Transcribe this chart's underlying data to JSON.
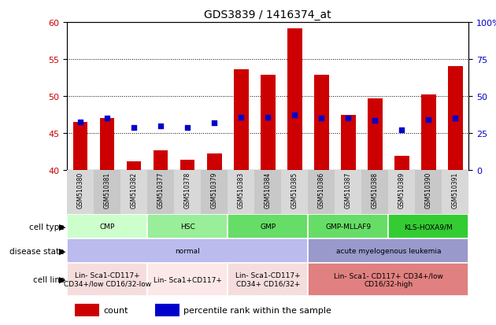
{
  "title": "GDS3839 / 1416374_at",
  "samples": [
    "GSM510380",
    "GSM510381",
    "GSM510382",
    "GSM510377",
    "GSM510378",
    "GSM510379",
    "GSM510383",
    "GSM510384",
    "GSM510385",
    "GSM510386",
    "GSM510387",
    "GSM510388",
    "GSM510389",
    "GSM510390",
    "GSM510391"
  ],
  "bar_values": [
    46.5,
    47.0,
    41.2,
    42.7,
    41.4,
    42.3,
    53.6,
    52.9,
    59.2,
    52.9,
    47.5,
    49.7,
    41.9,
    50.2,
    54.0
  ],
  "dot_values": [
    46.5,
    47.0,
    45.8,
    46.0,
    45.8,
    46.4,
    47.2,
    47.2,
    47.5,
    47.0,
    47.0,
    46.7,
    45.5,
    46.8,
    47.0
  ],
  "ylim_left": [
    40,
    60
  ],
  "yticks_left": [
    40,
    45,
    50,
    55,
    60
  ],
  "ylim_right": [
    0,
    100
  ],
  "yticks_right": [
    0,
    25,
    50,
    75,
    100
  ],
  "bar_color": "#cc0000",
  "dot_color": "#0000cc",
  "cell_type_groups": [
    {
      "label": "CMP",
      "start": 0,
      "end": 2,
      "color": "#ccffcc"
    },
    {
      "label": "HSC",
      "start": 3,
      "end": 5,
      "color": "#99ee99"
    },
    {
      "label": "GMP",
      "start": 6,
      "end": 8,
      "color": "#66dd66"
    },
    {
      "label": "GMP-MLLAF9",
      "start": 9,
      "end": 11,
      "color": "#66dd66"
    },
    {
      "label": "KLS-HOXA9/M",
      "start": 12,
      "end": 14,
      "color": "#33cc33"
    }
  ],
  "disease_state_groups": [
    {
      "label": "normal",
      "start": 0,
      "end": 8,
      "color": "#bbbbee"
    },
    {
      "label": "acute myelogenous leukemia",
      "start": 9,
      "end": 14,
      "color": "#9999cc"
    }
  ],
  "cell_line_groups": [
    {
      "label": "Lin- Sca1-CD117+\nCD34+/low CD16/32-low",
      "start": 0,
      "end": 2,
      "color": "#f5dddd"
    },
    {
      "label": "Lin- Sca1+CD117+",
      "start": 3,
      "end": 5,
      "color": "#fce8e8"
    },
    {
      "label": "Lin- Sca1-CD117+\nCD34+ CD16/32+",
      "start": 6,
      "end": 8,
      "color": "#f5dddd"
    },
    {
      "label": "Lin- Sca1- CD117+ CD34+/low\nCD16/32-high",
      "start": 9,
      "end": 14,
      "color": "#e08080"
    }
  ],
  "row_labels": [
    "cell type",
    "disease state",
    "cell line"
  ],
  "legend_items": [
    {
      "label": "count",
      "color": "#cc0000"
    },
    {
      "label": "percentile rank within the sample",
      "color": "#0000cc"
    }
  ]
}
